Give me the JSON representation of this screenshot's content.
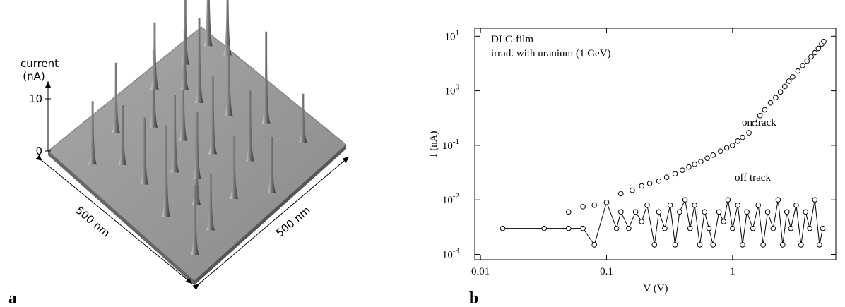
{
  "chart_data": [
    {
      "type": "surface",
      "panel_label": "a",
      "zlabel": [
        "current",
        "(nA)"
      ],
      "zticks": [
        0,
        10
      ],
      "xlabel": "500 nm",
      "ylabel": "500 nm"
    },
    {
      "type": "scatter",
      "panel_label": "b",
      "annotations": [
        "DLC-film",
        "irrad. with uranium (1 GeV)"
      ],
      "xlabel": "V (V)",
      "ylabel": "I (nA)",
      "xscale": "log",
      "yscale": "log",
      "xlim": [
        0.009,
        6.6
      ],
      "ylim": [
        0.0008,
        14
      ],
      "xticks": [
        0.01,
        0.1,
        1
      ],
      "yticks": [
        {
          "value": 0.001,
          "label": "10",
          "exponent": "-3"
        },
        {
          "value": 0.01,
          "label": "10",
          "exponent": "-2"
        },
        {
          "value": 0.1,
          "label": "10",
          "exponent": "-1"
        },
        {
          "value": 1,
          "label": "10",
          "exponent": "0"
        },
        {
          "value": 10,
          "label": "10",
          "exponent": "1"
        }
      ],
      "series": [
        {
          "name": "on track",
          "color": "#000000",
          "line": false,
          "x": [
            0.05,
            0.065,
            0.08,
            0.1,
            0.13,
            0.16,
            0.19,
            0.22,
            0.26,
            0.3,
            0.35,
            0.4,
            0.45,
            0.5,
            0.56,
            0.63,
            0.7,
            0.8,
            0.9,
            1.0,
            1.1,
            1.2,
            1.35,
            1.5,
            1.65,
            1.8,
            2.0,
            2.2,
            2.4,
            2.6,
            2.8,
            3.0,
            3.3,
            3.6,
            3.9,
            4.2,
            4.5,
            4.8,
            5.1,
            5.3
          ],
          "values": [
            0.006,
            0.0075,
            0.008,
            0.009,
            0.013,
            0.015,
            0.018,
            0.02,
            0.022,
            0.026,
            0.03,
            0.035,
            0.04,
            0.045,
            0.05,
            0.058,
            0.066,
            0.078,
            0.09,
            0.1,
            0.12,
            0.14,
            0.17,
            0.25,
            0.35,
            0.45,
            0.6,
            0.75,
            0.95,
            1.2,
            1.5,
            1.8,
            2.3,
            2.9,
            3.5,
            4.2,
            5.0,
            6.0,
            7.2,
            8.0
          ]
        },
        {
          "name": "off track",
          "color": "#000000",
          "line": true,
          "x": [
            0.015,
            0.032,
            0.05,
            0.065,
            0.08,
            0.1,
            0.12,
            0.13,
            0.15,
            0.17,
            0.19,
            0.21,
            0.24,
            0.26,
            0.29,
            0.32,
            0.35,
            0.38,
            0.42,
            0.46,
            0.5,
            0.55,
            0.6,
            0.65,
            0.7,
            0.78,
            0.85,
            0.92,
            1.0,
            1.1,
            1.2,
            1.3,
            1.45,
            1.6,
            1.75,
            1.9,
            2.1,
            2.3,
            2.5,
            2.7,
            2.9,
            3.2,
            3.5,
            3.8,
            4.1,
            4.5,
            4.9,
            5.2
          ],
          "values": [
            0.003,
            0.003,
            0.003,
            0.003,
            0.0015,
            0.009,
            0.003,
            0.006,
            0.003,
            0.006,
            0.004,
            0.008,
            0.0015,
            0.006,
            0.003,
            0.008,
            0.0015,
            0.006,
            0.01,
            0.003,
            0.008,
            0.0015,
            0.006,
            0.003,
            0.0015,
            0.006,
            0.004,
            0.01,
            0.003,
            0.008,
            0.0015,
            0.006,
            0.003,
            0.008,
            0.0015,
            0.006,
            0.003,
            0.01,
            0.0015,
            0.006,
            0.003,
            0.008,
            0.0015,
            0.006,
            0.003,
            0.01,
            0.0015,
            0.003
          ]
        }
      ]
    }
  ]
}
